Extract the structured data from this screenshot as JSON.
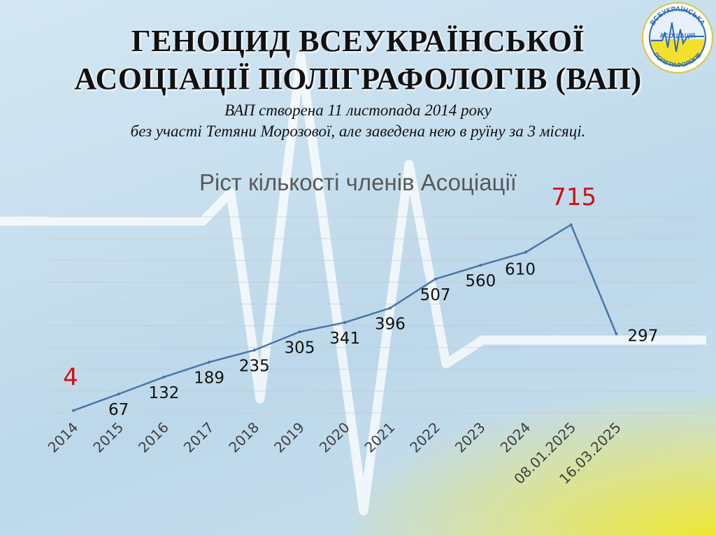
{
  "header": {
    "title_line1": "ГЕНОЦИД ВСЕУКРАЇНСЬКОЇ",
    "title_line2": "АСОЦІАЦІЇ ПОЛІГРАФОЛОГІВ (ВАП)",
    "subtitle_line1": "ВАП створена  11 листопада 2014 року",
    "subtitle_line2": "без участі Тетяни Морозової, але заведена нею в руїну за 3 місяці."
  },
  "logo": {
    "text_top": "ВСЕУКРАЇНСЬКА",
    "text_mid": "АСОЦІАЦІЯ",
    "text_bottom": "ПОЛІГРАФОЛОГІВ"
  },
  "colors": {
    "line": "#4a75a8",
    "label": "#111111",
    "highlight": "#d01010",
    "grid": "#c8c8c8",
    "tick": "#404040"
  },
  "chart_data": {
    "type": "line",
    "title": "Ріст кількості членів Асоціації",
    "categories": [
      "2014",
      "2015",
      "2016",
      "2017",
      "2018",
      "2019",
      "2020",
      "2021",
      "2022",
      "2023",
      "2024",
      "08.01.2025",
      "16.03.2025"
    ],
    "values": [
      4,
      67,
      132,
      189,
      235,
      305,
      341,
      396,
      507,
      560,
      610,
      715,
      297
    ],
    "highlighted": [
      0,
      11
    ],
    "ylim": [
      -5,
      745
    ],
    "grid": true,
    "legend": "none"
  }
}
